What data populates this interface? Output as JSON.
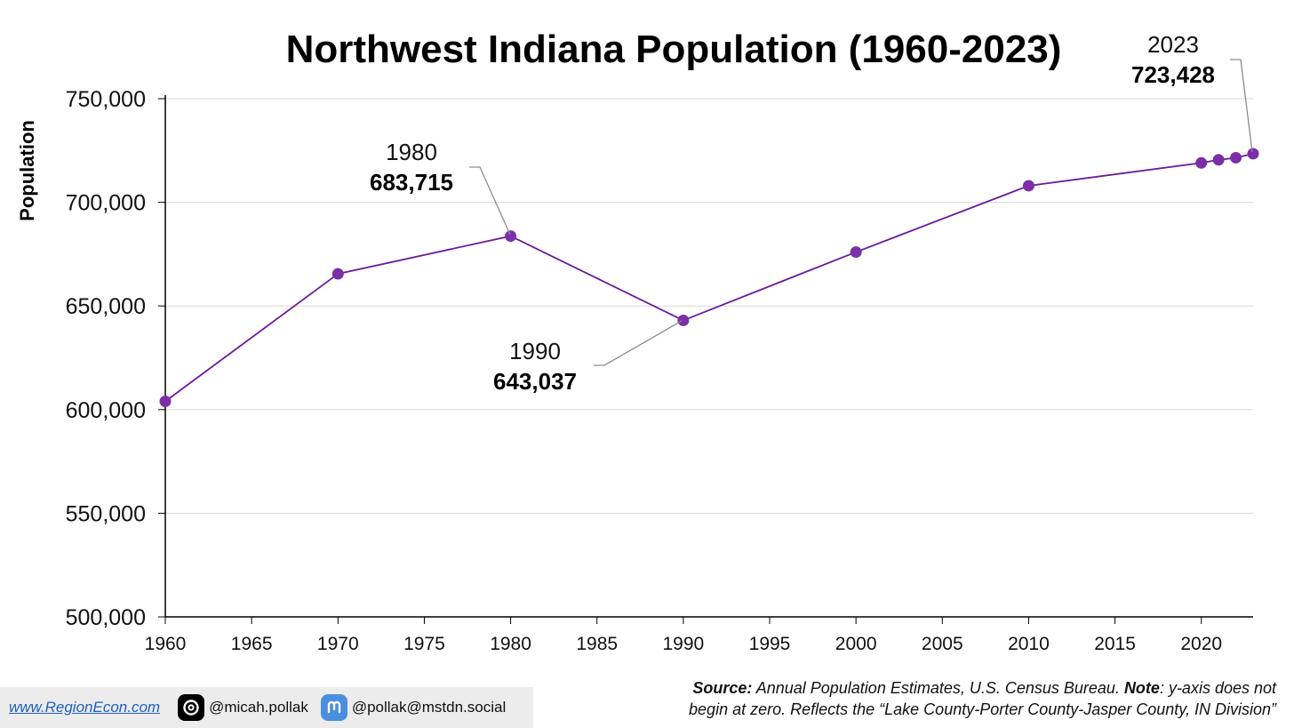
{
  "chart_data": {
    "type": "line",
    "title": "Northwest Indiana Population (1960-2023)",
    "ylabel": "Population",
    "xlabel": "",
    "xlim": [
      1960,
      2023
    ],
    "ylim": [
      500000,
      750000
    ],
    "x_ticks": [
      "1960",
      "1965",
      "1970",
      "1975",
      "1980",
      "1985",
      "1990",
      "1995",
      "2000",
      "2005",
      "2010",
      "2015",
      "2020"
    ],
    "y_ticks": [
      "500,000",
      "550,000",
      "600,000",
      "650,000",
      "700,000",
      "750,000"
    ],
    "grid": "horizontal",
    "series": [
      {
        "x": [
          1960,
          1970,
          1980,
          1990,
          2000,
          2010,
          2020,
          2021,
          2022,
          2023
        ],
        "values": [
          604000,
          665500,
          683715,
          643037,
          676000,
          708000,
          719000,
          720500,
          721500,
          723428
        ]
      }
    ],
    "annotations": [
      {
        "year": "1980",
        "value": "683,715"
      },
      {
        "year": "1990",
        "value": "643,037"
      },
      {
        "year": "2023",
        "value": "723,428"
      }
    ]
  },
  "colors": {
    "line": "#6a1b9a",
    "marker": "#7b2fa8",
    "grid": "#d9d9d9",
    "axis": "#000000",
    "leader": "#8c8c8c"
  },
  "footer": {
    "website": "www.RegionEcon.com",
    "threads_icon": "threads-icon",
    "threads_handle": "@micah.pollak",
    "mastodon_icon": "mastodon-icon",
    "mastodon_handle": "@pollak@mstdn.social",
    "source_label": "Source:",
    "source_text": " Annual Population Estimates, U.S. Census Bureau. ",
    "note_label": "Note",
    "note_text": ": y-axis does not",
    "note_line2": "begin at zero. Reflects the “Lake County-Porter County-Jasper County, IN Division”"
  }
}
